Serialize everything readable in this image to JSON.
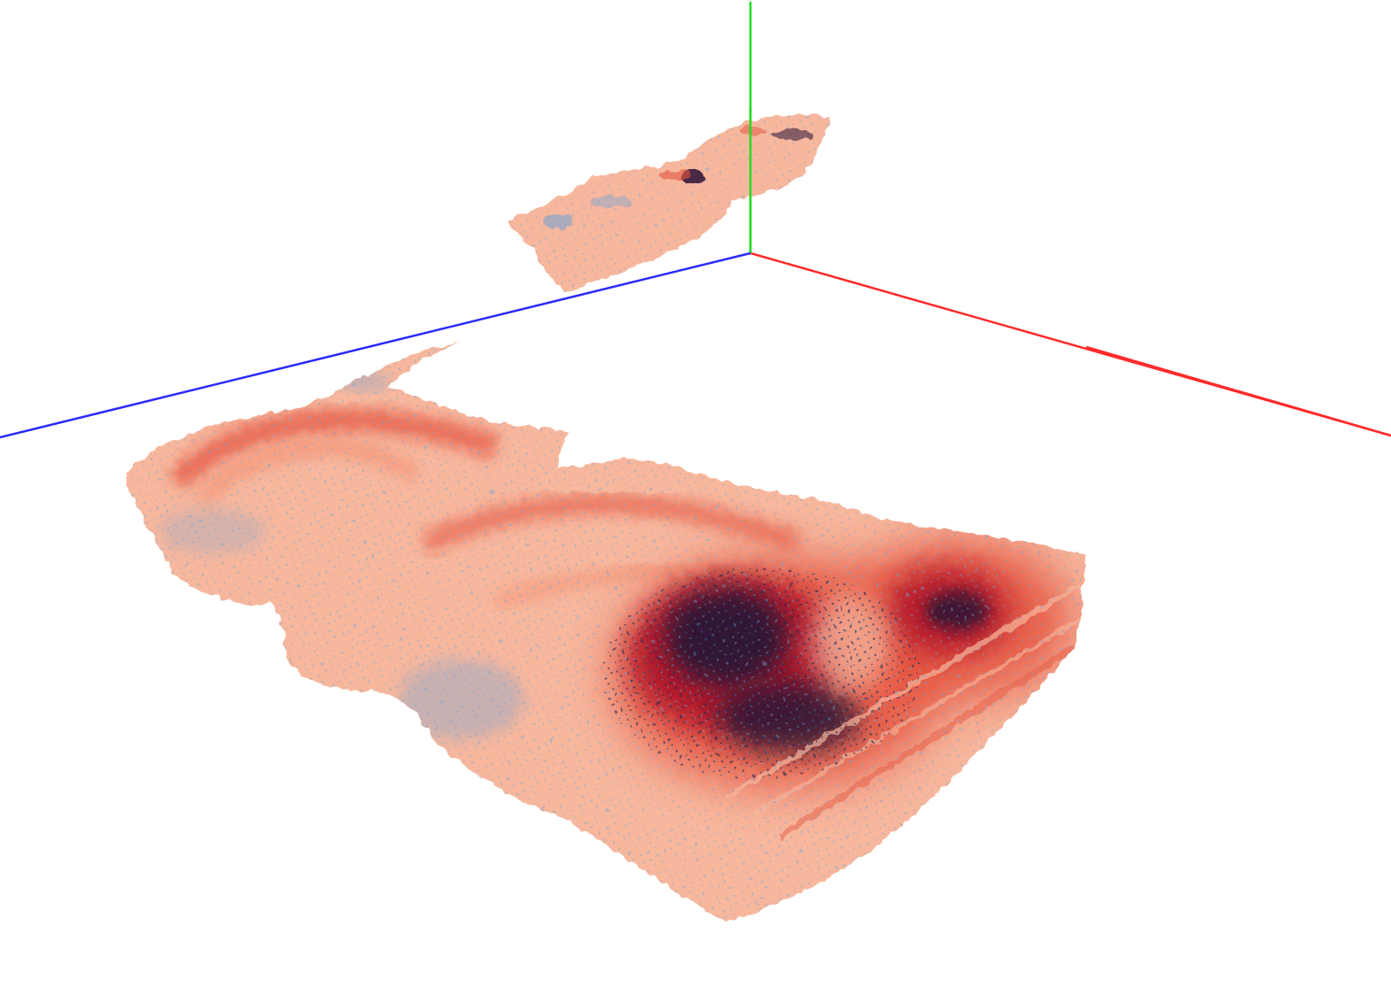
{
  "viewer": {
    "background": "#ffffff",
    "axes": {
      "x_color": "#ff2a2a",
      "y_color": "#22dd22",
      "z_color": "#2a2aff"
    }
  },
  "colormap": {
    "low": "#f7b79d",
    "mid": "#e6553f",
    "high": "#b0182a",
    "peak": "#2a1236",
    "point_color": "#6fa3d6"
  }
}
